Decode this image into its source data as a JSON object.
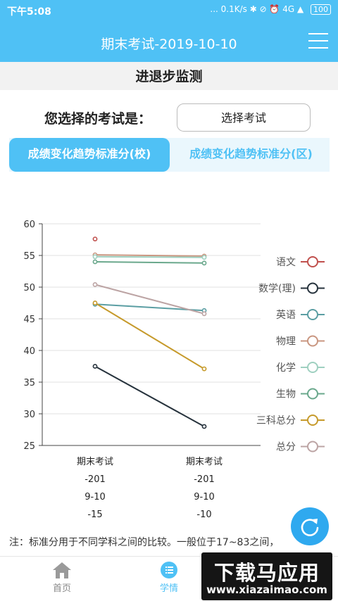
{
  "status_bar": {
    "time": "下午5:08",
    "network": "... 0.1K/s ✱ ⊘ ⏰ 4G ▲",
    "battery": "100"
  },
  "header": {
    "title": "期末考试-2019-10-10",
    "menu_icon": "hamburger-menu-icon"
  },
  "page": {
    "subtitle": "进退步监测",
    "select_label": "您选择的考试是：",
    "select_button": "选择考试"
  },
  "tabs": [
    {
      "label": "成绩变化趋势标准分(校)",
      "active": true
    },
    {
      "label": "成绩变化趋势标准分(区)",
      "active": false
    }
  ],
  "chart_data": {
    "type": "line",
    "ylim": [
      25,
      60
    ],
    "yticks": [
      25,
      30,
      35,
      40,
      45,
      50,
      55,
      60
    ],
    "categories": [
      [
        "期末考试",
        "-201",
        "9-10",
        "-15"
      ],
      [
        "期末考试",
        "-201",
        "9-10",
        "-10"
      ]
    ],
    "grid": true,
    "legend_position": "right",
    "series": [
      {
        "name": "语文",
        "color": "#c0504d",
        "values": [
          57.6,
          null
        ]
      },
      {
        "name": "数学(理)",
        "color": "#26323c",
        "values": [
          37.5,
          28.0
        ]
      },
      {
        "name": "英语",
        "color": "#5b9ea3",
        "values": [
          47.3,
          46.3
        ]
      },
      {
        "name": "物理",
        "color": "#c99680",
        "values": [
          55.1,
          54.9
        ]
      },
      {
        "name": "化学",
        "color": "#9fd0c0",
        "values": [
          54.8,
          54.7
        ]
      },
      {
        "name": "生物",
        "color": "#6aa88c",
        "values": [
          54.0,
          53.8
        ]
      },
      {
        "name": "三科总分",
        "color": "#c69a2b",
        "values": [
          47.5,
          37.1
        ]
      },
      {
        "name": "总分",
        "color": "#bca4a4",
        "values": [
          50.4,
          45.8
        ]
      }
    ]
  },
  "note": "注：标准分用于不同学科之间的比较。一般位于17~83之间，",
  "fab_icon": "refresh-icon",
  "bottom_nav": [
    {
      "label": "首页",
      "icon": "home-icon",
      "active": false,
      "color": "#888888"
    },
    {
      "label": "学情",
      "icon": "list-icon",
      "active": true,
      "color": "#4fc1f5"
    }
  ],
  "watermark": {
    "big": "下载马应用",
    "small": "www.xiazaimao.com"
  }
}
